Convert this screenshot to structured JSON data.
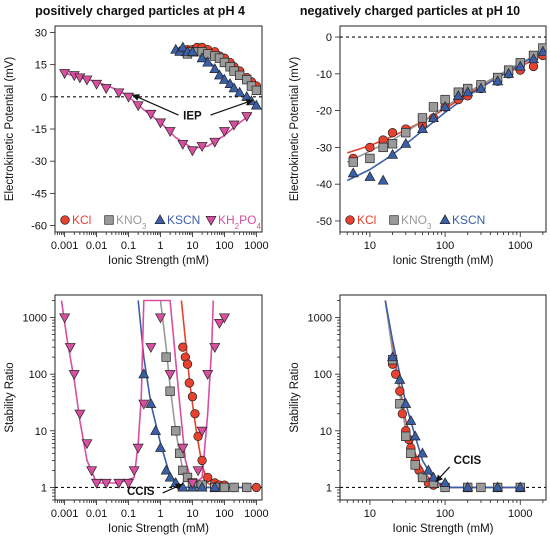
{
  "titles": {
    "left": "positively charged particles at pH 4",
    "right": "negatively charged particles at pH 10"
  },
  "colors": {
    "KCl": "#e8412f",
    "KNO3": "#9a9a9a",
    "KSCN": "#3a5fa8",
    "KH2PO4": "#d94fa0"
  },
  "chart_data": [
    {
      "type": "scatter",
      "panel": "top-left",
      "xlabel": "Ionic Strength (mM)",
      "ylabel": "Electrokinetic Potential (mV)",
      "xscale": "log",
      "xlim": [
        0.0005,
        1500
      ],
      "ylim": [
        -63,
        33
      ],
      "xticks": [
        0.001,
        0.01,
        0.1,
        1,
        10,
        100,
        1000
      ],
      "xtick_labels": [
        "0.001",
        "0.01",
        "0.1",
        "1",
        "10",
        "100",
        "1000"
      ],
      "yticks": [
        30,
        15,
        0,
        -15,
        -30,
        -45,
        -60
      ],
      "ytick_labels": [
        "30",
        "15",
        "0",
        "-15",
        "-30",
        "-45",
        "-60"
      ],
      "reference_line": 0,
      "legend": {
        "position": "bottom-left",
        "entries": [
          "KCl",
          "KNO3",
          "KSCN",
          "KH2PO4"
        ]
      },
      "annotations": [
        {
          "text": "IEP"
        }
      ],
      "series": [
        {
          "name": "KCl",
          "marker": "circle",
          "x": [
            5,
            7,
            10,
            14,
            20,
            30,
            50,
            70,
            100,
            150,
            200,
            300,
            500,
            700,
            1000
          ],
          "y": [
            21,
            22,
            22,
            23,
            23,
            22,
            21,
            19,
            18,
            16,
            14,
            12,
            9,
            7,
            5
          ],
          "fit": {
            "x": [
              4,
              10,
              20,
              50,
              100,
              200,
              500,
              1000,
              1300
            ],
            "y": [
              20,
              22,
              22.5,
              21,
              18.5,
              14.5,
              9,
              5,
              3
            ]
          }
        },
        {
          "name": "KNO3",
          "marker": "square",
          "x": [
            7,
            10,
            15,
            20,
            30,
            50,
            70,
            100,
            150,
            200,
            300,
            500,
            700,
            1000
          ],
          "y": [
            20,
            21,
            21,
            21,
            20,
            19,
            18,
            16,
            14,
            12,
            10,
            8,
            5,
            3
          ],
          "fit": {
            "x": [
              5,
              10,
              20,
              50,
              100,
              200,
              500,
              1000,
              1300
            ],
            "y": [
              20,
              21,
              21,
              19,
              16,
              12.5,
              7.5,
              3.5,
              2
            ]
          }
        },
        {
          "name": "KSCN",
          "marker": "triangle-up",
          "x": [
            3,
            4,
            5,
            7,
            10,
            20,
            30,
            50,
            70,
            100,
            150,
            200,
            300,
            500,
            700,
            1000
          ],
          "y": [
            22,
            21,
            23,
            21,
            21,
            18,
            16,
            13,
            10,
            8,
            6,
            4,
            2,
            0,
            -2,
            -4
          ],
          "fit": {
            "x": [
              3,
              5,
              10,
              20,
              50,
              100,
              200,
              500,
              1000,
              1300
            ],
            "y": [
              22.5,
              23,
              21.5,
              19,
              14,
              9,
              4,
              -1,
              -4,
              -5
            ]
          }
        },
        {
          "name": "KH2PO4",
          "marker": "triangle-down",
          "x": [
            0.001,
            0.002,
            0.003,
            0.005,
            0.01,
            0.02,
            0.05,
            0.1,
            0.2,
            0.5,
            1,
            2,
            5,
            10,
            20,
            50,
            100,
            200,
            500
          ],
          "y": [
            11,
            10,
            9,
            8,
            6,
            4,
            2,
            0,
            -4,
            -8,
            -12,
            -16,
            -22,
            -25,
            -23,
            -21,
            -16,
            -13,
            -9
          ],
          "fit": {
            "x": [
              0.001,
              0.01,
              0.05,
              0.1,
              0.3,
              1,
              3,
              10,
              30,
              100,
              300,
              700
            ],
            "y": [
              11,
              7,
              3,
              0,
              -6,
              -12,
              -19,
              -24,
              -23,
              -18,
              -12,
              -8
            ]
          }
        }
      ]
    },
    {
      "type": "scatter",
      "panel": "top-right",
      "xlabel": "Ionic Strength (mM)",
      "ylabel": "Electrokinetic Potential (mV)",
      "xscale": "log",
      "xlim": [
        4,
        2200
      ],
      "ylim": [
        -53,
        3
      ],
      "xticks": [
        10,
        100,
        1000
      ],
      "xtick_labels": [
        "10",
        "100",
        "1000"
      ],
      "yticks": [
        0,
        -10,
        -20,
        -30,
        -40,
        -50
      ],
      "ytick_labels": [
        "0",
        "-10",
        "-20",
        "-30",
        "-40",
        "-50"
      ],
      "reference_line": 0,
      "legend": {
        "position": "bottom-left",
        "entries": [
          "KCl",
          "KNO3",
          "KSCN"
        ]
      },
      "series": [
        {
          "name": "KCl",
          "marker": "circle",
          "x": [
            6,
            10,
            15,
            20,
            30,
            50,
            70,
            100,
            150,
            200,
            300,
            500,
            700,
            1000,
            1500,
            2000
          ],
          "y": [
            -33,
            -30,
            -28,
            -26,
            -25,
            -24,
            -22,
            -19,
            -17,
            -16,
            -14,
            -12,
            -10,
            -9,
            -8,
            -5
          ],
          "fit": {
            "x": [
              5,
              10,
              20,
              50,
              100,
              200,
              500,
              1000,
              2000
            ],
            "y": [
              -31.5,
              -29.5,
              -27,
              -23,
              -19.5,
              -15.5,
              -11,
              -8,
              -5
            ]
          }
        },
        {
          "name": "KNO3",
          "marker": "square",
          "x": [
            6,
            10,
            15,
            20,
            30,
            50,
            70,
            100,
            150,
            200,
            300,
            500,
            700,
            1000,
            1500,
            2000
          ],
          "y": [
            -34,
            -33,
            -30,
            -29,
            -26,
            -22,
            -19,
            -17,
            -15,
            -14,
            -13,
            -11,
            -9,
            -7,
            -5,
            -3
          ],
          "fit": {
            "x": [
              5,
              10,
              20,
              50,
              100,
              200,
              500,
              1000,
              2000
            ],
            "y": [
              -34,
              -31,
              -28,
              -23,
              -19,
              -15,
              -10.5,
              -7,
              -4
            ]
          }
        },
        {
          "name": "KSCN",
          "marker": "triangle-up",
          "x": [
            6,
            10,
            15,
            20,
            30,
            50,
            70,
            100,
            150,
            200,
            300,
            500,
            700,
            1000,
            1500,
            2000
          ],
          "y": [
            -37,
            -38,
            -39,
            -32,
            -29,
            -25,
            -22,
            -19,
            -16,
            -15,
            -14,
            -12,
            -10,
            -8,
            -6,
            -4
          ],
          "fit": {
            "x": [
              5,
              10,
              20,
              50,
              100,
              200,
              500,
              1000,
              2000
            ],
            "y": [
              -39,
              -36,
              -32,
              -25.5,
              -20.5,
              -16,
              -11,
              -7.5,
              -4
            ]
          }
        }
      ]
    },
    {
      "type": "scatter",
      "panel": "bottom-left",
      "xlabel": "Ionic Strength (mM)",
      "ylabel": "Stability Ratio",
      "xscale": "log",
      "yscale": "log",
      "xlim": [
        0.0005,
        1500
      ],
      "ylim": [
        0.6,
        2500
      ],
      "xticks": [
        0.001,
        0.01,
        0.1,
        1,
        10,
        100,
        1000
      ],
      "xtick_labels": [
        "0.001",
        "0.01",
        "0.1",
        "1",
        "10",
        "100",
        "1000"
      ],
      "yticks": [
        1,
        10,
        100,
        1000
      ],
      "ytick_labels": [
        "1",
        "10",
        "100",
        "1000"
      ],
      "reference_line": 1,
      "annotations": [
        {
          "text": "CCIS"
        }
      ],
      "series": [
        {
          "name": "KCl",
          "marker": "circle",
          "x": [
            5,
            6,
            7,
            8,
            10,
            12,
            15,
            20,
            30,
            50,
            70,
            100,
            200,
            500,
            1000
          ],
          "y": [
            300,
            200,
            150,
            70,
            40,
            20,
            8,
            3,
            1.5,
            1.2,
            1.1,
            1.1,
            1,
            1,
            1
          ],
          "fit": {
            "x": [
              4.5,
              6,
              8,
              10,
              14,
              20,
              30,
              50,
              100,
              1000
            ],
            "y": [
              2000,
              400,
              80,
              30,
              8,
              2.5,
              1.2,
              1,
              1,
              1
            ]
          }
        },
        {
          "name": "KNO3",
          "marker": "square",
          "x": [
            1.5,
            2,
            3,
            4,
            5,
            7,
            10,
            20,
            50,
            100,
            200,
            500
          ],
          "y": [
            200,
            50,
            10,
            4,
            2,
            1.5,
            1.2,
            1.1,
            1,
            1,
            1,
            1
          ],
          "fit": {
            "x": [
              1,
              1.5,
              2,
              3,
              5,
              10,
              100,
              1000
            ],
            "y": [
              2000,
              300,
              60,
              10,
              2,
              1,
              1,
              1
            ]
          }
        },
        {
          "name": "KSCN",
          "marker": "triangle-up",
          "x": [
            0.3,
            0.5,
            0.7,
            1,
            1.5,
            2,
            3,
            5,
            10,
            20,
            50
          ],
          "y": [
            100,
            30,
            10,
            5,
            2,
            1.5,
            1.2,
            1,
            1,
            1,
            1
          ],
          "fit": {
            "x": [
              0.2,
              0.3,
              0.5,
              1,
              2,
              5,
              10,
              1000
            ],
            "y": [
              2000,
              200,
              30,
              6,
              1.6,
              1,
              1,
              1
            ]
          }
        },
        {
          "name": "KH2PO4",
          "marker": "triangle-down",
          "x": [
            0.001,
            0.0015,
            0.002,
            0.003,
            0.005,
            0.007,
            0.01,
            0.02,
            0.05,
            0.1,
            0.15,
            0.2,
            0.3,
            0.5,
            1,
            2,
            5,
            10,
            15,
            20,
            30,
            50,
            70,
            100
          ],
          "y": [
            1000,
            300,
            100,
            20,
            6,
            2,
            1.2,
            1.2,
            1.2,
            1.2,
            2,
            5,
            30,
            300,
            1000,
            100,
            5,
            1.2,
            2,
            10,
            100,
            300,
            800,
            1000
          ],
          "fit": {
            "x": [
              0.0008,
              0.0012,
              0.002,
              0.003,
              0.005,
              0.01,
              0.05,
              0.15,
              0.2,
              0.25,
              0.3,
              2,
              4,
              6,
              10,
              20,
              30,
              40,
              45
            ],
            "y": [
              2000,
              400,
              80,
              15,
              3,
              1.2,
              1.2,
              1.5,
              6,
              40,
              2000,
              2000,
              30,
              3,
              1.1,
              1.5,
              20,
              300,
              2000
            ]
          }
        }
      ]
    },
    {
      "type": "scatter",
      "panel": "bottom-right",
      "xlabel": "Ionic Strength (mM)",
      "ylabel": "Stability Ratio",
      "xscale": "log",
      "yscale": "log",
      "xlim": [
        4,
        2200
      ],
      "ylim": [
        0.6,
        2500
      ],
      "xticks": [
        10,
        100,
        1000
      ],
      "xtick_labels": [
        "10",
        "100",
        "1000"
      ],
      "yticks": [
        1,
        10,
        100,
        1000
      ],
      "ytick_labels": [
        "1",
        "10",
        "100",
        "1000"
      ],
      "reference_line": 1,
      "annotations": [
        {
          "text": "CCIS"
        }
      ],
      "series": [
        {
          "name": "KCl",
          "marker": "circle",
          "x": [
            20,
            22,
            25,
            27,
            30,
            33,
            35,
            40,
            45,
            50,
            60,
            70,
            100,
            200,
            500,
            1000
          ],
          "y": [
            150,
            100,
            50,
            20,
            10,
            7,
            5,
            3,
            2,
            1.5,
            1.2,
            1.1,
            1,
            1,
            1,
            1
          ],
          "fit": {
            "x": [
              16,
              20,
              25,
              30,
              40,
              50,
              70,
              100,
              1000
            ],
            "y": [
              2000,
              300,
              60,
              15,
              4,
              2,
              1.2,
              1,
              1
            ]
          }
        },
        {
          "name": "KNO3",
          "marker": "square",
          "x": [
            20,
            25,
            30,
            35,
            40,
            50,
            70,
            100,
            200,
            300,
            500,
            1000
          ],
          "y": [
            180,
            30,
            8,
            4,
            2.5,
            1.5,
            1.2,
            1,
            1,
            1,
            1,
            1
          ],
          "fit": {
            "x": [
              16,
              20,
              25,
              30,
              40,
              50,
              70,
              100,
              1000
            ],
            "y": [
              2000,
              250,
              45,
              10,
              3,
              1.6,
              1.1,
              1,
              1
            ]
          }
        },
        {
          "name": "KSCN",
          "marker": "triangle-up",
          "x": [
            20,
            25,
            30,
            35,
            40,
            50,
            60,
            70,
            100,
            200,
            500,
            1000
          ],
          "y": [
            200,
            80,
            30,
            15,
            8,
            4,
            2,
            1.5,
            1.2,
            1,
            1,
            1
          ],
          "fit": {
            "x": [
              16,
              20,
              25,
              30,
              40,
              50,
              70,
              100,
              1000
            ],
            "y": [
              2000,
              400,
              100,
              30,
              8,
              3,
              1.4,
              1,
              1
            ]
          }
        }
      ]
    }
  ]
}
